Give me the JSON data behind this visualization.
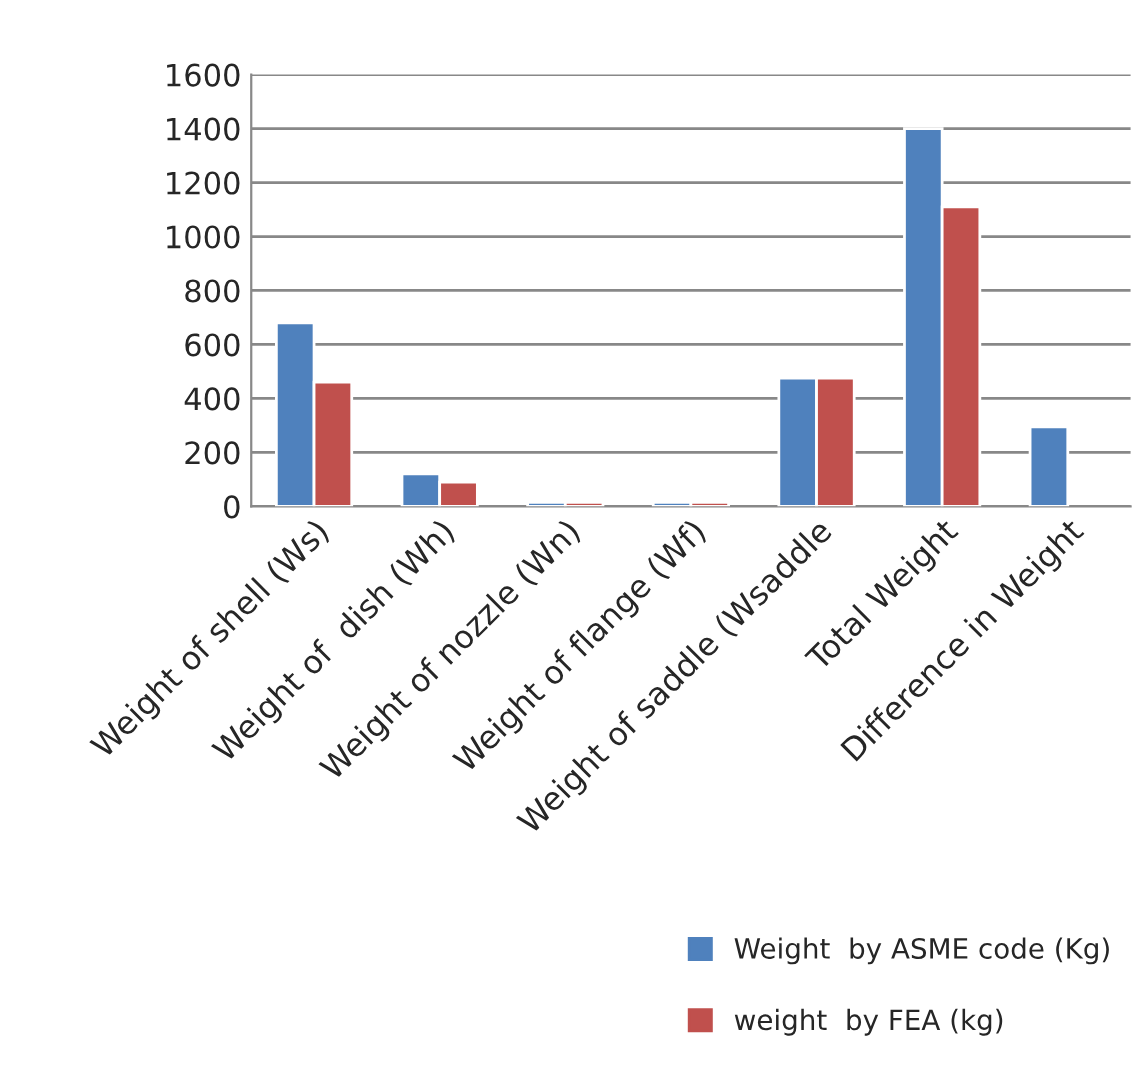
{
  "chart_data": {
    "type": "bar",
    "categories": [
      "Weight of shell (Ws)",
      "Weight of  dish (Wh)",
      "Weight of nozzle (Wn)",
      "Weight of flange (Wf)",
      "Weight of saddle (Wsaddle",
      "Total Weight",
      "Difference in Weight"
    ],
    "series": [
      {
        "name": "Weight  by ASME code (Kg)",
        "color": "#4f81bd",
        "values": [
          680,
          120,
          15,
          15,
          475,
          1400,
          295
        ]
      },
      {
        "name": "weight  by FEA (kg)",
        "color": "#c0504d",
        "values": [
          460,
          90,
          15,
          15,
          475,
          1110,
          null
        ]
      }
    ],
    "ylim": [
      0,
      1600
    ],
    "yticks": [
      0,
      200,
      400,
      600,
      800,
      1000,
      1200,
      1400,
      1600
    ],
    "grid": "y",
    "legend": "bottom right"
  }
}
